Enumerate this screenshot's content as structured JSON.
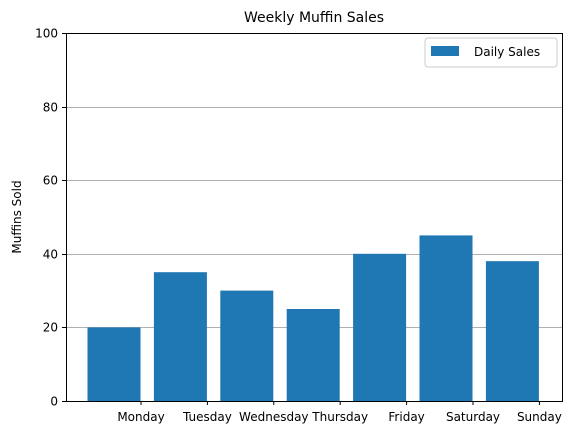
{
  "chart_data": {
    "type": "bar",
    "title": "Weekly Muffin Sales",
    "xlabel": "",
    "ylabel": "Muffins Sold",
    "categories": [
      "Monday",
      "Tuesday",
      "Wednesday",
      "Thursday",
      "Friday",
      "Saturday",
      "Sunday"
    ],
    "series": [
      {
        "name": "Daily Sales",
        "values": [
          20,
          35,
          30,
          25,
          40,
          45,
          38
        ],
        "color": "#1f77b4"
      }
    ],
    "ylim": [
      0,
      100
    ],
    "yticks": [
      0,
      20,
      40,
      60,
      80,
      100
    ],
    "ytick_labels": [
      "0",
      "20",
      "40",
      "60",
      "80",
      "100"
    ],
    "grid": "y",
    "grid_color": "#b0b0b0",
    "legend_position": "top-right"
  }
}
